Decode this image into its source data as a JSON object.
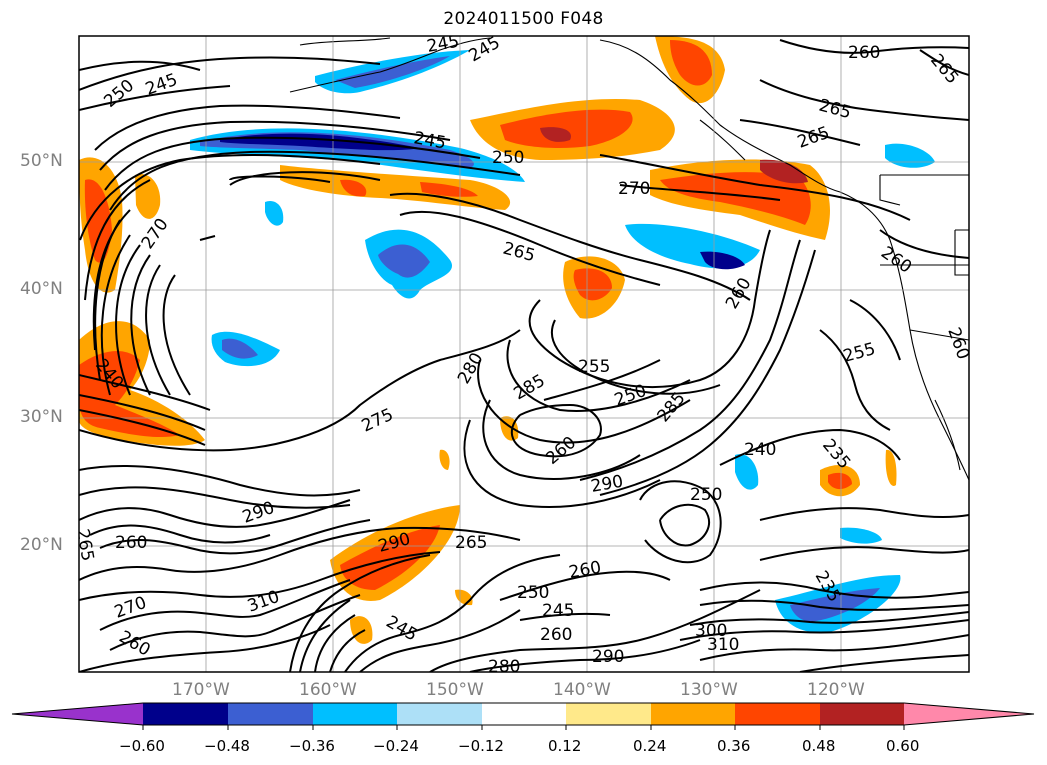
{
  "title": "2024011500 F048",
  "map": {
    "lat_labels": [
      "50°N",
      "40°N",
      "30°N",
      "20°N"
    ],
    "lon_labels": [
      "170°W",
      "160°W",
      "150°W",
      "140°W",
      "130°W",
      "120°W"
    ],
    "contour_labels": [
      "245",
      "250",
      "255",
      "260",
      "265",
      "270",
      "275",
      "280",
      "285",
      "290",
      "300",
      "310",
      "240",
      "235"
    ]
  },
  "colorbar": {
    "ticks": [
      "−0.60",
      "−0.48",
      "−0.36",
      "−0.24",
      "−0.12",
      "0.12",
      "0.24",
      "0.36",
      "0.48",
      "0.60"
    ],
    "colors": [
      "#9932cc",
      "#00008b",
      "#3c5fd2",
      "#00bfff",
      "#ade0f7",
      "#ffffff",
      "#ffe98a",
      "#ffa500",
      "#ff4500",
      "#b22222",
      "#ff88aa"
    ]
  }
}
